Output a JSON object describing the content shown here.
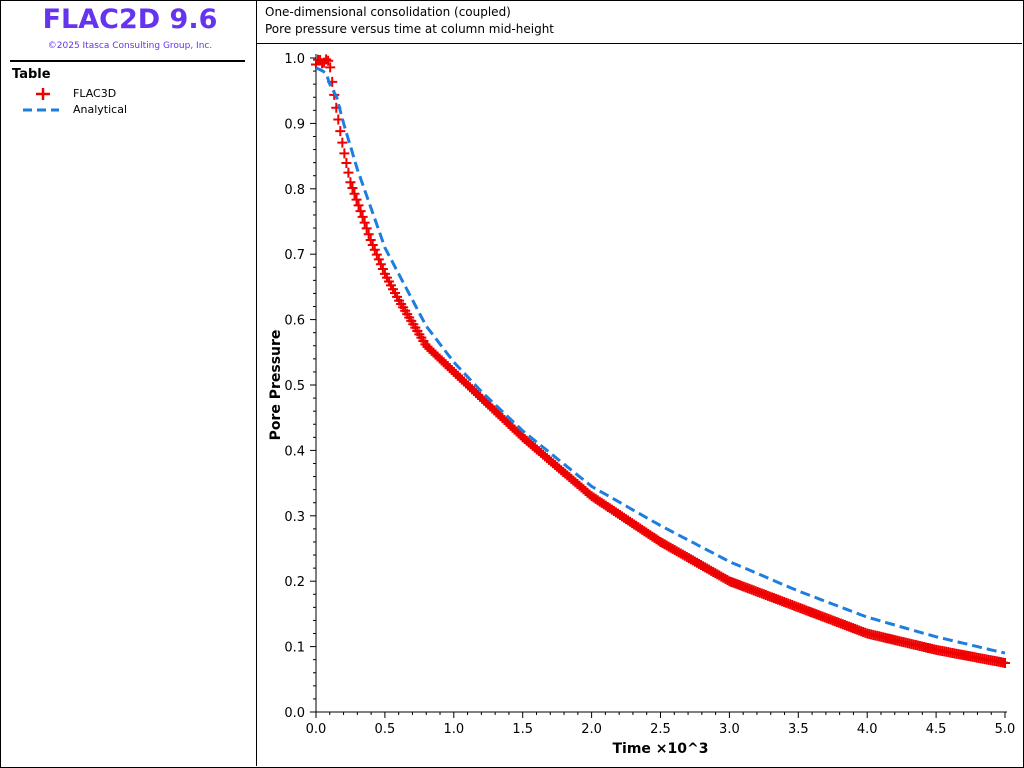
{
  "app": {
    "title": "FLAC2D 9.6",
    "copyright": "©2025 Itasca Consulting Group, Inc."
  },
  "legend": {
    "heading": "Table",
    "entries": [
      {
        "label": "FLAC3D",
        "color": "#ee0000",
        "symbol": "plus-marker"
      },
      {
        "label": "Analytical",
        "color": "#1e7ee0",
        "symbol": "dashed-line"
      }
    ]
  },
  "plot_title": {
    "line1": "One-dimensional consolidation (coupled)",
    "line2": "Pore pressure versus time at column mid-height"
  },
  "chart_data": {
    "type": "line",
    "xlabel": "Time ×10^3",
    "ylabel": "Pore Pressure",
    "xlim": [
      0,
      5.0
    ],
    "ylim": [
      0,
      1.0
    ],
    "x_ticks": [
      "0.0",
      "0.5",
      "1.0",
      "1.5",
      "2.0",
      "2.5",
      "3.0",
      "3.5",
      "4.0",
      "4.5",
      "5.0"
    ],
    "y_ticks": [
      "0.0",
      "0.1",
      "0.2",
      "0.3",
      "0.4",
      "0.5",
      "0.6",
      "0.7",
      "0.8",
      "0.9",
      "1.0"
    ],
    "grid": false,
    "legend_position": "left-panel",
    "series": [
      {
        "name": "FLAC3D",
        "color": "#ee0000",
        "marker": "plus",
        "x": [
          0,
          0.02,
          0.05,
          0.08,
          0.1,
          0.12,
          0.15,
          0.2,
          0.25,
          0.3,
          0.4,
          0.5,
          0.6,
          0.8,
          1.0,
          1.2,
          1.5,
          2.0,
          2.5,
          3.0,
          3.5,
          4.0,
          4.5,
          5.0
        ],
        "y": [
          0.99,
          1.0,
          0.99,
          1.0,
          0.99,
          0.96,
          0.92,
          0.86,
          0.81,
          0.78,
          0.72,
          0.67,
          0.63,
          0.56,
          0.52,
          0.48,
          0.42,
          0.33,
          0.26,
          0.2,
          0.16,
          0.12,
          0.095,
          0.075
        ]
      },
      {
        "name": "Analytical",
        "color": "#1e7ee0",
        "style": "dashed",
        "x": [
          0,
          0.05,
          0.08,
          0.1,
          0.15,
          0.2,
          0.3,
          0.4,
          0.5,
          0.6,
          0.8,
          1.0,
          1.2,
          1.5,
          2.0,
          2.5,
          3.0,
          3.5,
          4.0,
          4.5,
          5.0
        ],
        "y": [
          0.985,
          0.98,
          0.975,
          0.96,
          0.94,
          0.9,
          0.83,
          0.77,
          0.71,
          0.67,
          0.59,
          0.535,
          0.49,
          0.43,
          0.345,
          0.285,
          0.23,
          0.185,
          0.145,
          0.115,
          0.09
        ]
      }
    ]
  }
}
